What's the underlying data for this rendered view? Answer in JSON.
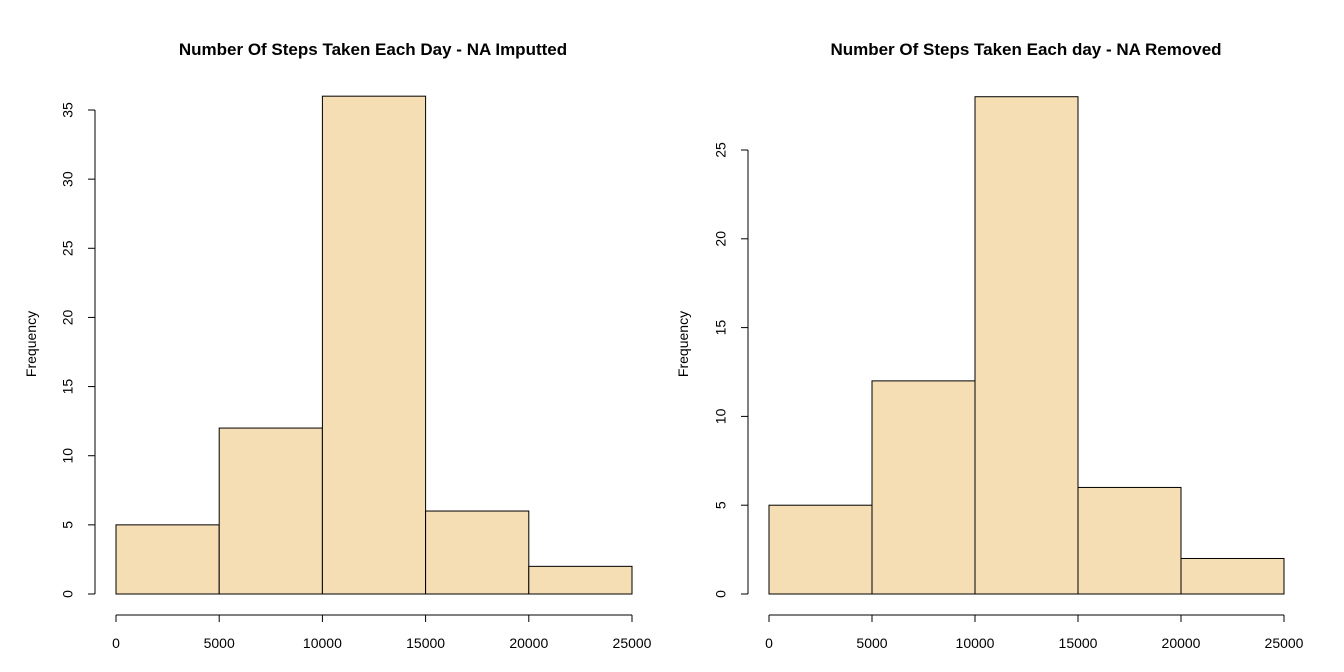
{
  "chart_data": [
    {
      "type": "bar",
      "title": "Number Of Steps Taken Each Day - NA Imputted",
      "xlabel": "",
      "ylabel": "Frequency",
      "bins": [
        [
          0,
          5000
        ],
        [
          5000,
          10000
        ],
        [
          10000,
          15000
        ],
        [
          15000,
          20000
        ],
        [
          20000,
          25000
        ]
      ],
      "values": [
        5,
        12,
        36,
        6,
        2
      ],
      "xlim": [
        0,
        25000
      ],
      "ylim": [
        0,
        35
      ],
      "xticks": [
        0,
        5000,
        10000,
        15000,
        20000,
        25000
      ],
      "yticks": [
        0,
        5,
        10,
        15,
        20,
        25,
        30,
        35
      ],
      "bar_color": "#F5DEB3",
      "grid": false
    },
    {
      "type": "bar",
      "title": "Number Of Steps Taken Each day - NA Removed",
      "xlabel": "",
      "ylabel": "Frequency",
      "bins": [
        [
          0,
          5000
        ],
        [
          5000,
          10000
        ],
        [
          10000,
          15000
        ],
        [
          15000,
          20000
        ],
        [
          20000,
          25000
        ]
      ],
      "values": [
        5,
        12,
        28,
        6,
        2
      ],
      "xlim": [
        0,
        25000
      ],
      "ylim": [
        0,
        25
      ],
      "xticks": [
        0,
        5000,
        10000,
        15000,
        20000,
        25000
      ],
      "yticks": [
        0,
        5,
        10,
        15,
        20,
        25
      ],
      "bar_color": "#F5DEB3",
      "grid": false
    }
  ]
}
